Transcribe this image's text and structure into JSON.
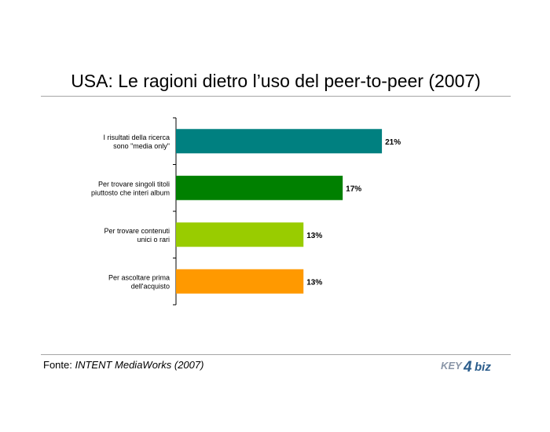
{
  "slide": {
    "title": "USA: Le ragioni dietro l’uso del peer-to-peer (2007)",
    "footer": {
      "prefix": "Fonte: ",
      "source": "INTENT MediaWorks (2007)"
    },
    "logo": {
      "part1": "KEY",
      "part2": "4",
      "part3": "biz",
      "colors": {
        "text": "#8a96a8",
        "accent": "#2b5d8c"
      }
    }
  },
  "chart_data": {
    "type": "bar",
    "orientation": "horizontal",
    "title": "USA: Le ragioni dietro l’uso del peer-to-peer (2007)",
    "categories": [
      [
        "I risultati della ricerca",
        "sono \"media only\""
      ],
      [
        "Per trovare singoli titoli",
        "piuttosto che interi album"
      ],
      [
        "Per trovare contenuti",
        "unici o rari"
      ],
      [
        "Per ascoltare prima",
        "dell'acquisto"
      ]
    ],
    "values": [
      21,
      17,
      13,
      13
    ],
    "value_labels": [
      "21%",
      "17%",
      "13%",
      "13%"
    ],
    "colors": [
      "#008080",
      "#008000",
      "#99cc00",
      "#ff9900"
    ],
    "xlim": [
      0,
      25
    ],
    "unit": "%",
    "grid": false,
    "legend": "none"
  }
}
